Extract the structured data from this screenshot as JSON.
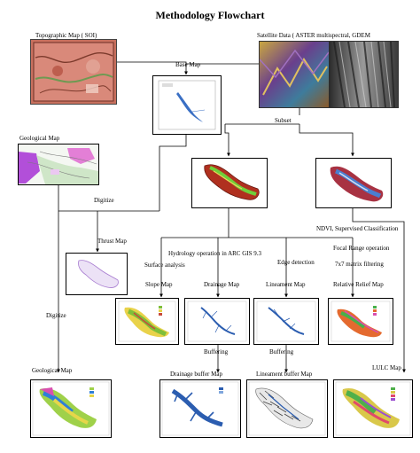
{
  "title": "Methodology Flowchart",
  "labels": {
    "topographic_map": "Topographic Map ( SOI)",
    "satellite_data": "Satellite Data ( ASTER multispectral, GDEM",
    "base_map": "Base Map",
    "subset": "Subset",
    "geological_map_top": "Geological Map",
    "digitize_1": "Digitize",
    "thrust_map": "Thrust Map",
    "ndvi": "NDVI, Supervised Classification",
    "hydrology": "Hydrology operation in ARC GIS 9.3",
    "focal_range": "Focal Range operation",
    "surface_analysis": "Surface analysis",
    "edge_detection": "Edge detection",
    "matrix_filter": "7x7 matrix filtering",
    "slope_map": "Slope Map",
    "drainage_map": "Drainage Map",
    "lineament_map": "Lineament Map",
    "relative_relief_map": "Relative Relief Map",
    "digitize_2": "Digitize",
    "buffering_1": "Buffering",
    "buffering_2": "Buffering",
    "lulc_map": "LULC Map",
    "geological_map_bottom": "Geological Map",
    "drainage_buffer_map": "Drainage buffer Map",
    "lineament_buffer_map": "Lineament buffer Map"
  },
  "colors": {
    "topo": "#b5524a",
    "satellite": "#7a4e8f",
    "dem": "#6b6b6b",
    "geology_pink": "#e37fd6",
    "geology_purple": "#b24fd9",
    "dem_red": "#b0301f",
    "dem_green": "#6fcf3a",
    "drainage_blue": "#2b5db0"
  }
}
